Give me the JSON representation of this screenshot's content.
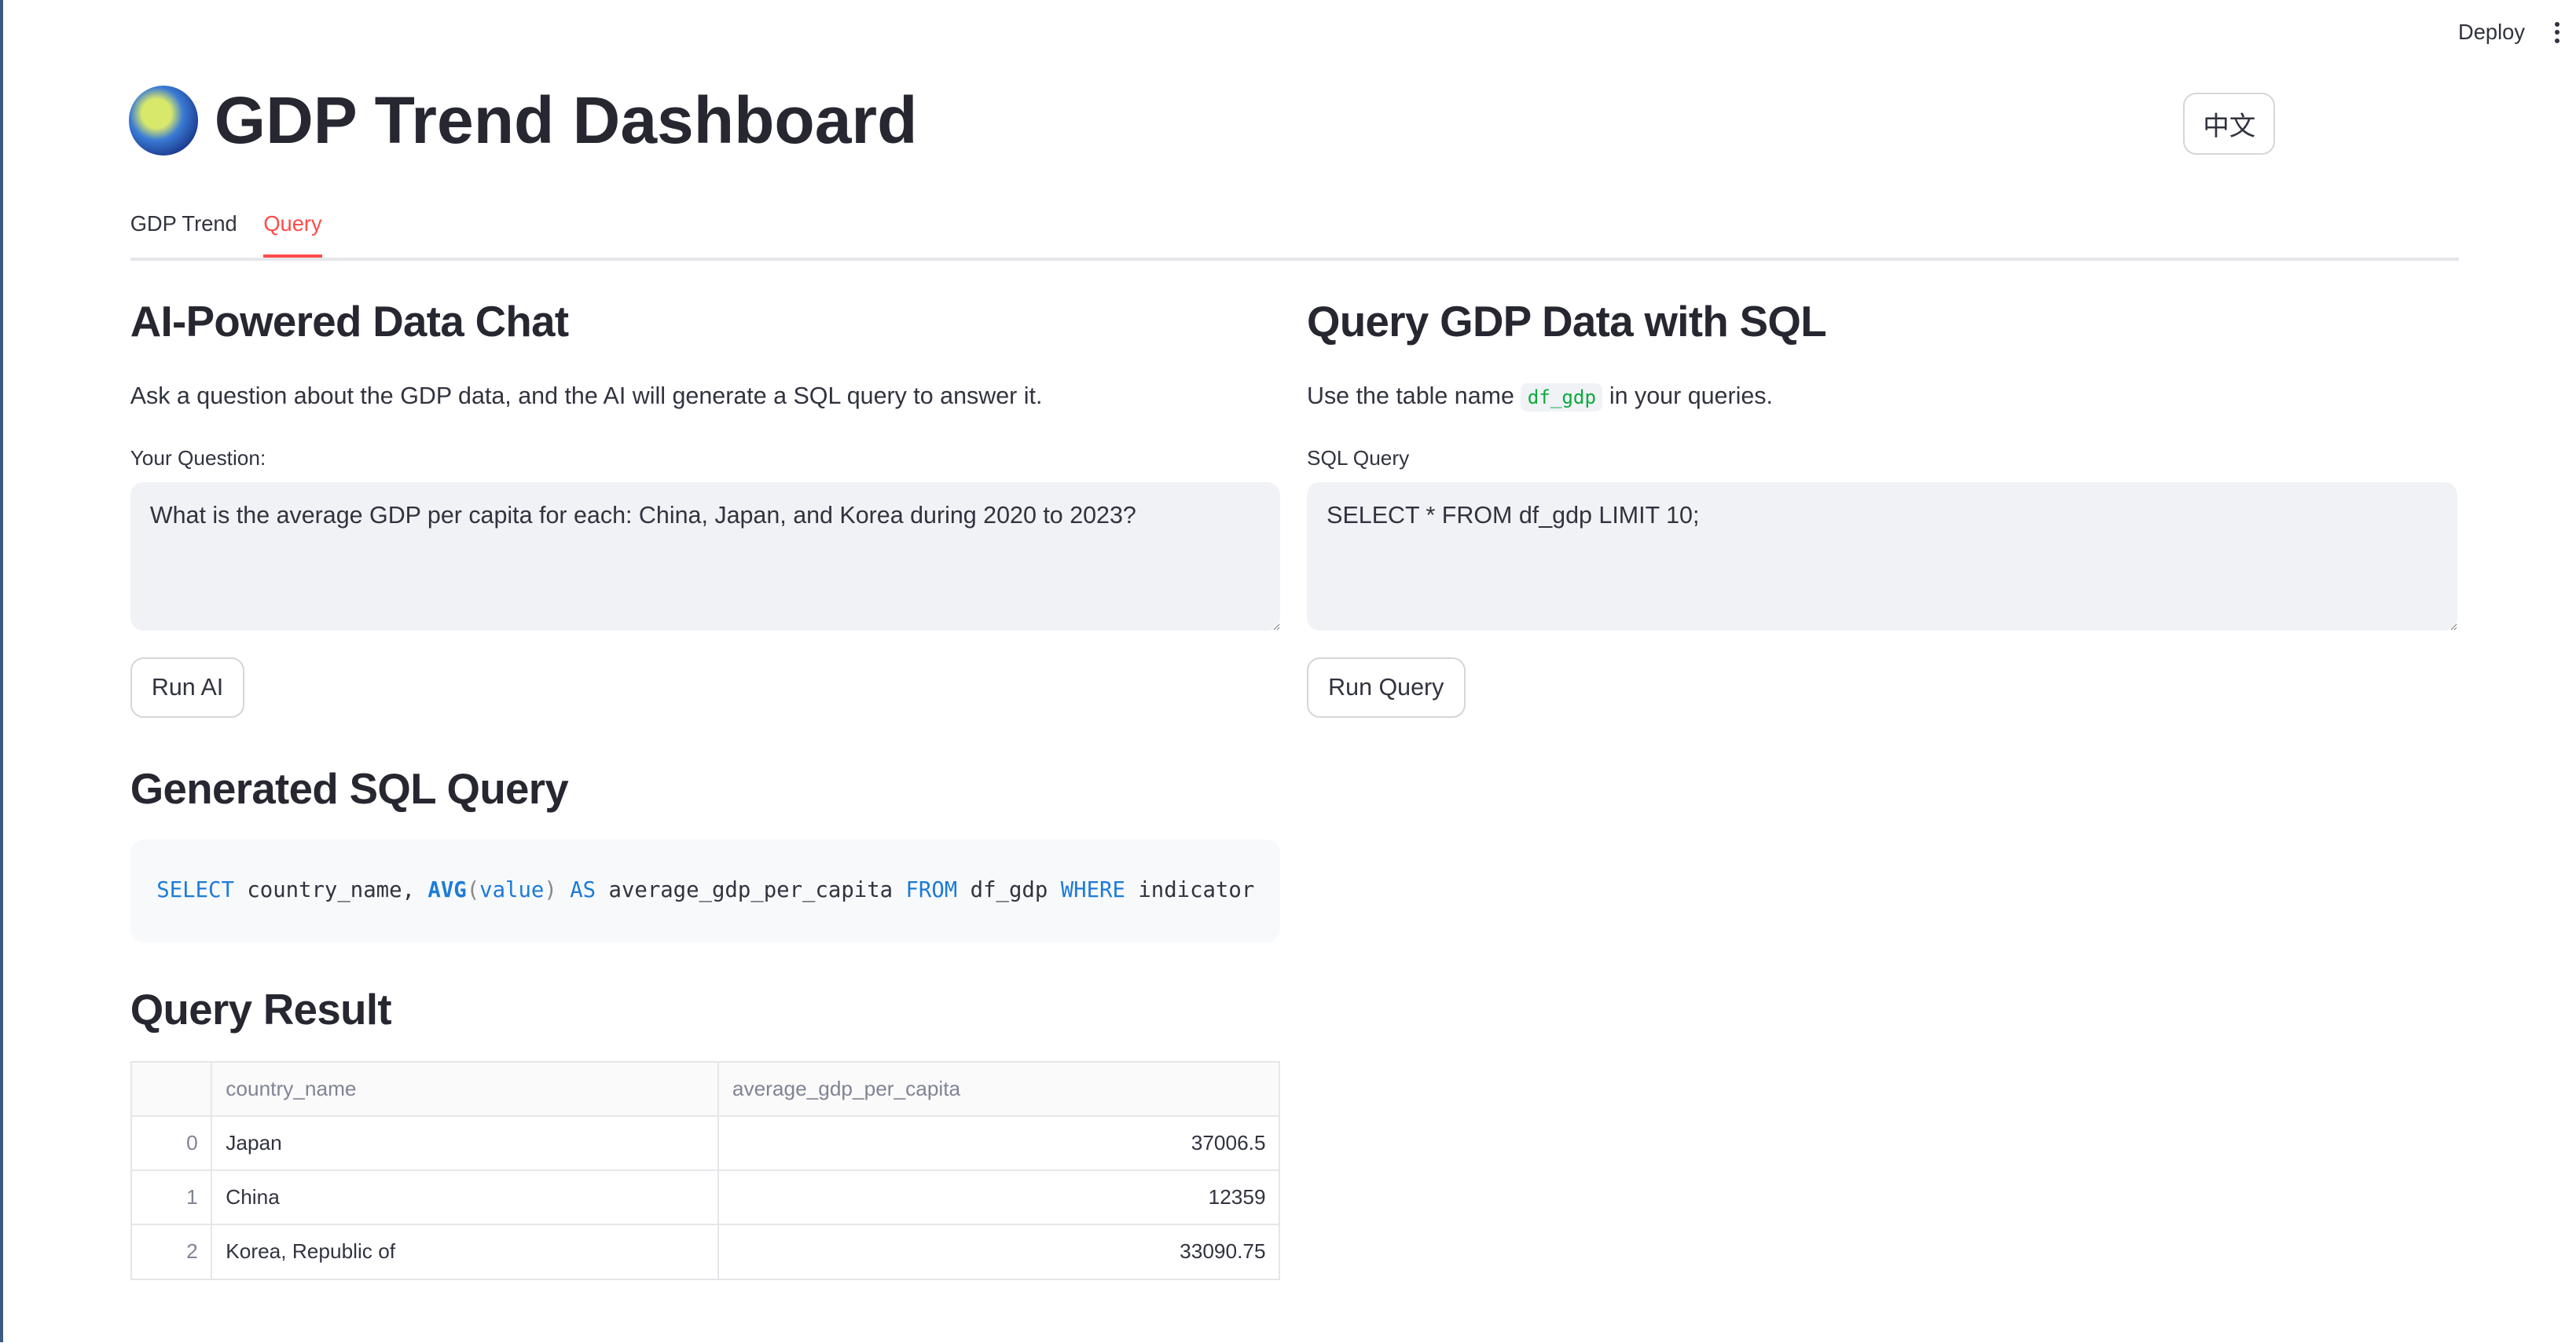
{
  "topbar": {
    "deploy": "Deploy"
  },
  "header": {
    "title": "GDP Trend Dashboard",
    "icon": "globe-africa-emoji",
    "lang_button": "中文"
  },
  "tabs": [
    {
      "label": "GDP Trend",
      "active": false
    },
    {
      "label": "Query",
      "active": true
    }
  ],
  "ai_chat": {
    "heading": "AI-Powered Data Chat",
    "description": "Ask a question about the GDP data, and the AI will generate a SQL query to answer it.",
    "question_label": "Your Question:",
    "question_value": "What is the average GDP per capita for each: China, Japan, and Korea during 2020 to 2023?",
    "run_button": "Run AI"
  },
  "sql_panel": {
    "heading": "Query GDP Data with SQL",
    "description_pre": "Use the table name",
    "table_name": "df_gdp",
    "description_post": "in your queries.",
    "query_label": "SQL Query",
    "query_value": "SELECT * FROM df_gdp LIMIT 10;",
    "run_button": "Run Query"
  },
  "generated": {
    "heading": "Generated SQL Query",
    "tokens": {
      "select": "SELECT",
      "col": " country_name, ",
      "avg": "AVG",
      "lp": "(",
      "value": "value",
      "rp": ")",
      "as": " AS",
      "alias": " average_gdp_per_capita ",
      "from": "FROM",
      "table": " df_gdp ",
      "where": "WHERE",
      "rest": " indicator"
    }
  },
  "result": {
    "heading": "Query Result",
    "columns": [
      "",
      "country_name",
      "average_gdp_per_capita"
    ],
    "rows": [
      {
        "index": "0",
        "country": "Japan",
        "value": "37006.5"
      },
      {
        "index": "1",
        "country": "China",
        "value": "12359"
      },
      {
        "index": "2",
        "country": "Korea, Republic of",
        "value": "33090.75"
      }
    ]
  },
  "colors": {
    "accent": "#ff4b4b",
    "keyword": "#1c7bd9"
  }
}
